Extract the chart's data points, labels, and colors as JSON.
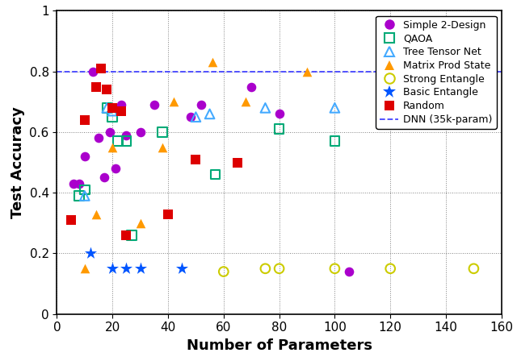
{
  "simple_2design": {
    "x": [
      6,
      8,
      10,
      13,
      15,
      17,
      19,
      21,
      23,
      25,
      30,
      35,
      48,
      52,
      70,
      80,
      105
    ],
    "y": [
      0.43,
      0.43,
      0.52,
      0.8,
      0.58,
      0.45,
      0.6,
      0.48,
      0.69,
      0.59,
      0.6,
      0.69,
      0.65,
      0.69,
      0.75,
      0.66,
      0.14
    ],
    "color": "#aa00cc",
    "marker": "o",
    "label": "Simple 2-Design",
    "size": 70
  },
  "qaoa": {
    "x": [
      8,
      10,
      18,
      20,
      22,
      25,
      27,
      38,
      57,
      80,
      100
    ],
    "y": [
      0.39,
      0.41,
      0.68,
      0.65,
      0.57,
      0.57,
      0.26,
      0.6,
      0.46,
      0.61,
      0.57
    ],
    "color": "#00aa77",
    "marker": "s",
    "label": "QAOA",
    "size": 70
  },
  "tree_tensor_net": {
    "x": [
      10,
      18,
      20,
      50,
      55,
      75,
      100
    ],
    "y": [
      0.39,
      0.68,
      0.67,
      0.65,
      0.66,
      0.68,
      0.68
    ],
    "color": "#44aaff",
    "marker": "^",
    "label": "Tree Tensor Net",
    "size": 70
  },
  "matrix_prod_state": {
    "x": [
      10,
      14,
      20,
      30,
      38,
      42,
      56,
      68,
      90
    ],
    "y": [
      0.15,
      0.33,
      0.55,
      0.3,
      0.55,
      0.7,
      0.83,
      0.7,
      0.8
    ],
    "color": "#ff9900",
    "marker": "^",
    "label": "Matrix Prod State",
    "size": 70
  },
  "strong_entangle": {
    "x": [
      60,
      75,
      80,
      100,
      120,
      150
    ],
    "y": [
      0.14,
      0.15,
      0.15,
      0.15,
      0.15,
      0.15
    ],
    "color": "#cccc00",
    "marker": "o",
    "label": "Strong Entangle",
    "size": 70
  },
  "basic_entangle": {
    "x": [
      12,
      20,
      25,
      30,
      45
    ],
    "y": [
      0.2,
      0.15,
      0.15,
      0.15,
      0.15
    ],
    "color": "#0055ff",
    "marker": "*",
    "label": "Basic Entangle",
    "size": 130
  },
  "random": {
    "x": [
      5,
      10,
      14,
      16,
      18,
      20,
      23,
      25,
      40,
      50,
      65
    ],
    "y": [
      0.31,
      0.64,
      0.75,
      0.81,
      0.74,
      0.68,
      0.67,
      0.26,
      0.33,
      0.51,
      0.5
    ],
    "color": "#dd0000",
    "marker": "s",
    "label": "Random",
    "size": 70
  },
  "dnn_line_y": 0.8,
  "dnn_label": "DNN (35k-param)",
  "xlabel": "Number of Parameters",
  "ylabel": "Test Accuracy",
  "xlim": [
    0,
    160
  ],
  "ylim": [
    0,
    1.0
  ],
  "xticks": [
    0,
    20,
    40,
    60,
    80,
    100,
    120,
    140,
    160
  ],
  "yticks": [
    0,
    0.2,
    0.4,
    0.6,
    0.8,
    1
  ],
  "ytick_labels": [
    "0",
    "0.2",
    "0.4",
    "0.6",
    "0.8",
    "1"
  ],
  "figsize": [
    6.4,
    4.48
  ],
  "dpi": 100
}
